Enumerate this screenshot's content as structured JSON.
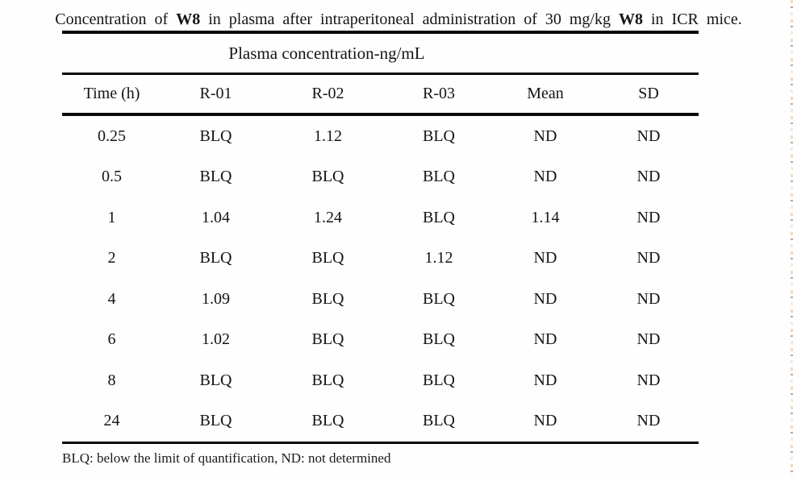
{
  "caption": {
    "parts": [
      "Concentration of ",
      "W8",
      " in plasma after intraperitoneal administration of 30 mg/kg ",
      "W8",
      " in ICR mice."
    ]
  },
  "table": {
    "group_header": "Plasma concentration-ng/mL",
    "columns": [
      "Time (h)",
      "R-01",
      "R-02",
      "R-03",
      "Mean",
      "SD"
    ],
    "rows": [
      [
        "0.25",
        "BLQ",
        "1.12",
        "BLQ",
        "ND",
        "ND"
      ],
      [
        "0.5",
        "BLQ",
        "BLQ",
        "BLQ",
        "ND",
        "ND"
      ],
      [
        "1",
        "1.04",
        "1.24",
        "BLQ",
        "1.14",
        "ND"
      ],
      [
        "2",
        "BLQ",
        "BLQ",
        "1.12",
        "ND",
        "ND"
      ],
      [
        "4",
        "1.09",
        "BLQ",
        "BLQ",
        "ND",
        "ND"
      ],
      [
        "6",
        "1.02",
        "BLQ",
        "BLQ",
        "ND",
        "ND"
      ],
      [
        "8",
        "BLQ",
        "BLQ",
        "BLQ",
        "ND",
        "ND"
      ],
      [
        "24",
        "BLQ",
        "BLQ",
        "BLQ",
        "ND",
        "ND"
      ]
    ],
    "footnote": "BLQ: below the limit of quantification, ND: not determined"
  },
  "chart_data": {
    "type": "table",
    "title": "Concentration of W8 in plasma after intraperitoneal administration of 30 mg/kg W8 in ICR mice.",
    "group_header": "Plasma concentration-ng/mL",
    "columns": [
      "Time (h)",
      "R-01",
      "R-02",
      "R-03",
      "Mean",
      "SD"
    ],
    "rows": [
      [
        "0.25",
        "BLQ",
        "1.12",
        "BLQ",
        "ND",
        "ND"
      ],
      [
        "0.5",
        "BLQ",
        "BLQ",
        "BLQ",
        "ND",
        "ND"
      ],
      [
        "1",
        "1.04",
        "1.24",
        "BLQ",
        "1.14",
        "ND"
      ],
      [
        "2",
        "BLQ",
        "BLQ",
        "1.12",
        "ND",
        "ND"
      ],
      [
        "4",
        "1.09",
        "BLQ",
        "BLQ",
        "ND",
        "ND"
      ],
      [
        "6",
        "1.02",
        "BLQ",
        "BLQ",
        "ND",
        "ND"
      ],
      [
        "8",
        "BLQ",
        "BLQ",
        "BLQ",
        "ND",
        "ND"
      ],
      [
        "24",
        "BLQ",
        "BLQ",
        "BLQ",
        "ND",
        "ND"
      ]
    ],
    "footnote": "BLQ: below the limit of quantification, ND: not determined"
  },
  "colors": {
    "text": "#141414",
    "rule": "#0a0a0a",
    "background": "#fefefe",
    "edge_dots": "#ebb98c"
  }
}
